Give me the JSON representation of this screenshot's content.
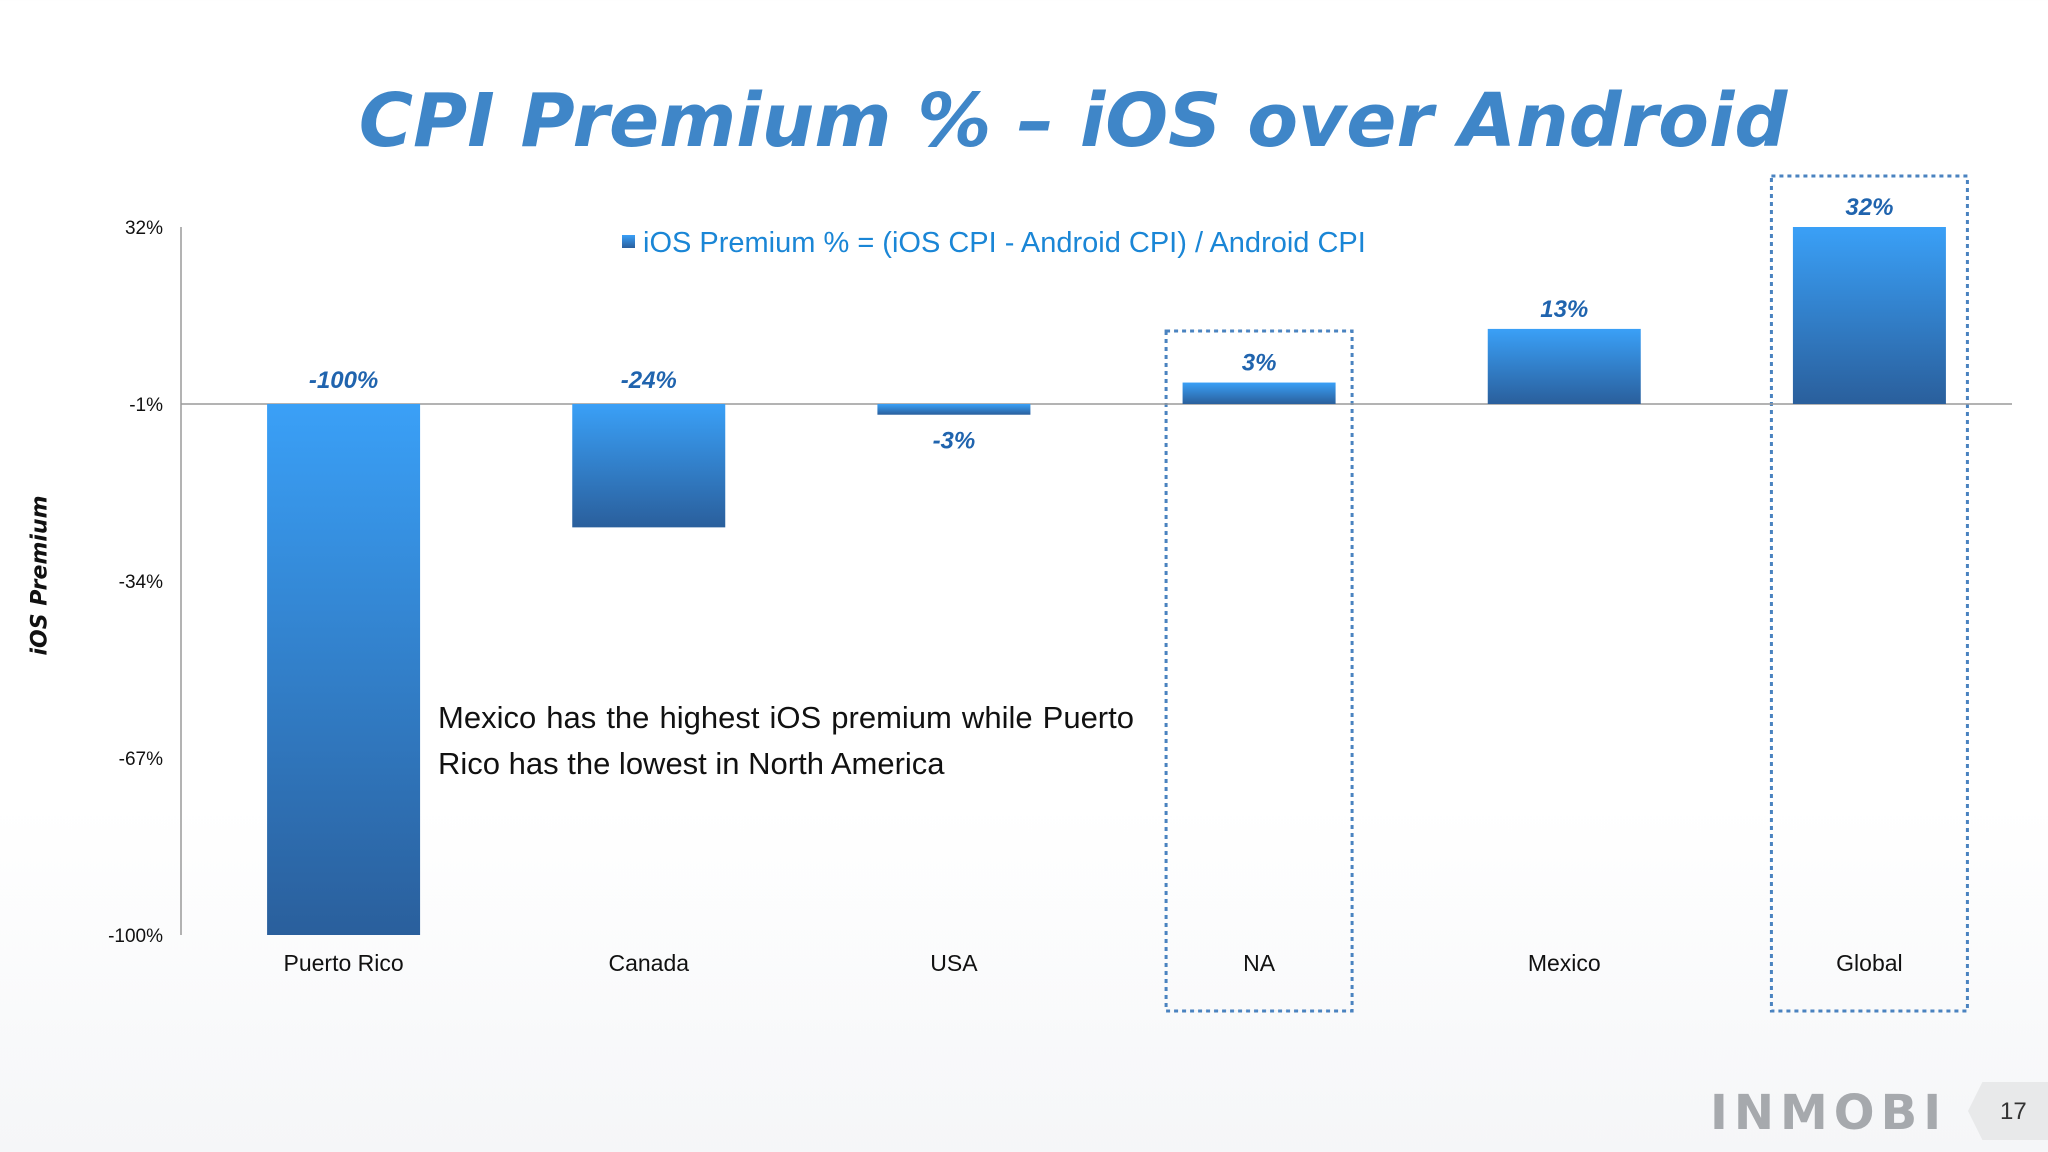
{
  "page": {
    "number": "17",
    "logo_text": "INMOBI"
  },
  "note_text": "Mexico has the highest iOS premium while Puerto Rico has the lowest in North America",
  "highlight_categories": [
    "NA",
    "Global"
  ],
  "colors": {
    "bar_top": "#3aa0f7",
    "bar_bottom": "#2a5f9c",
    "title": "#3f86c8",
    "label": "#2064ae",
    "legend_text": "#1a86d6",
    "box": "#4a83c0"
  },
  "chart_data": {
    "type": "bar",
    "title": "CPI Premium % – iOS over Android",
    "ylabel": "iOS Premium",
    "xlabel": "",
    "legend": "iOS Premium % = (iOS CPI - Android CPI) / Android CPI",
    "legend_position": "top-center",
    "categories": [
      "Puerto Rico",
      "Canada",
      "USA",
      "NA",
      "Mexico",
      "Global"
    ],
    "values": [
      -100,
      -24,
      -3,
      3,
      13,
      32
    ],
    "value_labels": [
      "-100%",
      "-24%",
      "-3%",
      "3%",
      "13%",
      "32%"
    ],
    "y_ticks": [
      "32%",
      "-1%",
      "-34%",
      "-67%",
      "-100%"
    ],
    "ylim": [
      -100,
      32
    ],
    "grid": false
  }
}
